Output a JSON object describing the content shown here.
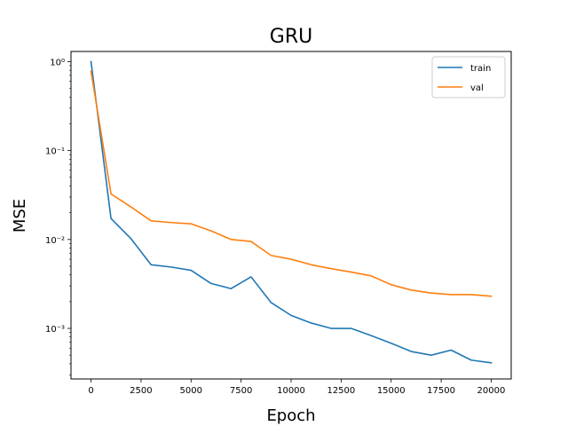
{
  "chart_data": {
    "type": "line",
    "title": "GRU",
    "xlabel": "Epoch",
    "ylabel": "MSE",
    "xscale": "linear",
    "yscale": "log",
    "xlim": [
      -1000,
      21000
    ],
    "ylim": [
      0.00027,
      1.3
    ],
    "grid": false,
    "legend_position": "top-right",
    "x_ticks": [
      0,
      2500,
      5000,
      7500,
      10000,
      12500,
      15000,
      17500,
      20000
    ],
    "x_tick_labels": [
      "0",
      "2500",
      "5000",
      "7500",
      "10000",
      "12500",
      "15000",
      "17500",
      "20000"
    ],
    "y_ticks": [
      0.001,
      0.01,
      0.1,
      1
    ],
    "y_tick_labels": [
      "10⁻³",
      "10⁻²",
      "10⁻¹",
      "10⁰"
    ],
    "x": [
      0,
      1000,
      2000,
      3000,
      4000,
      5000,
      6000,
      7000,
      8000,
      9000,
      10000,
      11000,
      12000,
      13000,
      14000,
      15000,
      16000,
      17000,
      18000,
      19000,
      20000
    ],
    "series": [
      {
        "name": "train",
        "color": "#1f77b4",
        "values": [
          1.0,
          0.0172,
          0.0102,
          0.0052,
          0.0049,
          0.0045,
          0.0032,
          0.0028,
          0.0038,
          0.00195,
          0.0014,
          0.00115,
          0.001,
          0.001,
          0.00083,
          0.00068,
          0.00055,
          0.0005,
          0.00057,
          0.00044,
          0.00041
        ]
      },
      {
        "name": "val",
        "color": "#ff7f0e",
        "values": [
          0.78,
          0.0325,
          0.0232,
          0.0162,
          0.0155,
          0.015,
          0.0125,
          0.01,
          0.0095,
          0.0066,
          0.006,
          0.0052,
          0.0047,
          0.0043,
          0.0039,
          0.0031,
          0.0027,
          0.0025,
          0.0024,
          0.0024,
          0.0023
        ]
      }
    ]
  }
}
